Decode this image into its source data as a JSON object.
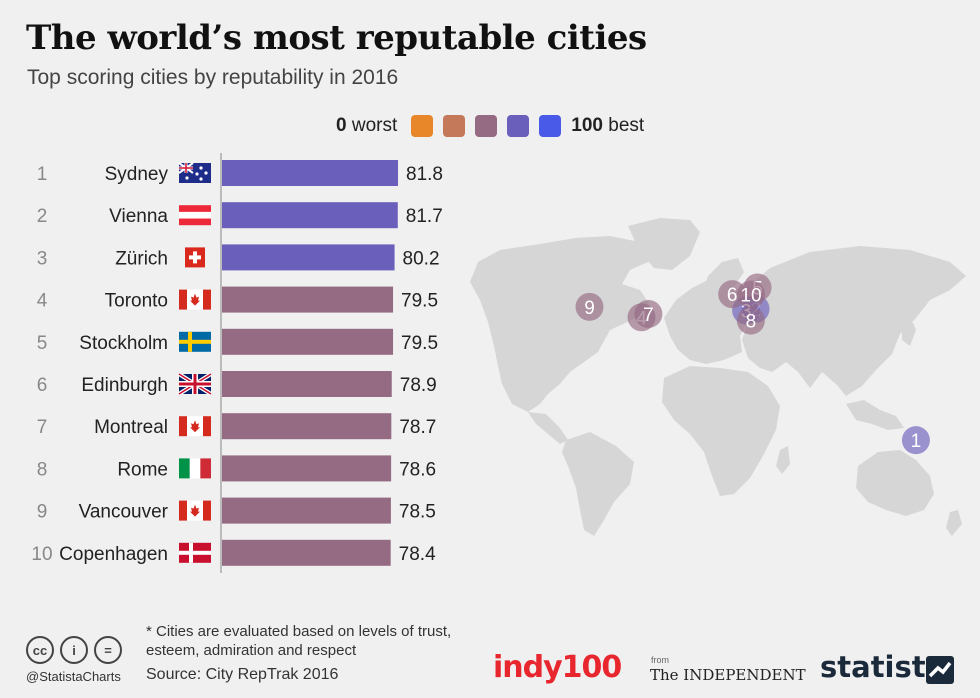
{
  "title": "The world’s most reputable cities",
  "subtitle": "Top scoring cities by reputability in 2016",
  "legend": {
    "low_bold": "0",
    "low_text": "worst",
    "high_bold": "100",
    "high_text": "best",
    "colors": [
      "#e8872a",
      "#c47a5a",
      "#956a83",
      "#6b5fbc",
      "#4a5ae8"
    ]
  },
  "chart_data": {
    "type": "bar",
    "orientation": "horizontal",
    "title": "The world’s most reputable cities",
    "subtitle": "Top scoring cities by reputability in 2016",
    "xlim": [
      0,
      100
    ],
    "categories": [
      "Sydney",
      "Vienna",
      "Zürich",
      "Toronto",
      "Stockholm",
      "Edinburgh",
      "Montreal",
      "Rome",
      "Vancouver",
      "Copenhagen"
    ],
    "ranks": [
      "1",
      "2",
      "3",
      "4",
      "5",
      "6",
      "7",
      "8",
      "9",
      "10"
    ],
    "values": [
      81.8,
      81.7,
      80.2,
      79.5,
      79.5,
      78.9,
      78.7,
      78.6,
      78.5,
      78.4
    ],
    "value_labels": [
      "81.8",
      "81.7",
      "80.2",
      "79.5",
      "79.5",
      "78.9",
      "78.7",
      "78.6",
      "78.5",
      "78.4"
    ],
    "flags": [
      "australia-flag-icon",
      "austria-flag-icon",
      "switzerland-flag-icon",
      "canada-flag-icon",
      "sweden-flag-icon",
      "uk-flag-icon",
      "canada-flag-icon",
      "italy-flag-icon",
      "canada-flag-icon",
      "denmark-flag-icon"
    ],
    "bar_colors": [
      "#6b5fbc",
      "#6b5fbc",
      "#6b5fbc",
      "#956a83",
      "#956a83",
      "#956a83",
      "#956a83",
      "#956a83",
      "#956a83",
      "#956a83"
    ],
    "legend_placement": "top-center"
  },
  "map": {
    "land_color": "#d6d6d6",
    "markers": [
      {
        "label": "1",
        "lon": 151.2,
        "lat": -33.9,
        "color": "#6b5fbc"
      },
      {
        "label": "2",
        "lon": 16.4,
        "lat": 48.2,
        "color": "#6b5fbc"
      },
      {
        "label": "3",
        "lon": 8.5,
        "lat": 47.4,
        "color": "#6b5fbc"
      },
      {
        "label": "4",
        "lon": -79.4,
        "lat": 43.7,
        "color": "#956a83"
      },
      {
        "label": "5",
        "lon": 18.1,
        "lat": 59.3,
        "color": "#956a83"
      },
      {
        "label": "6",
        "lon": -3.2,
        "lat": 55.9,
        "color": "#956a83"
      },
      {
        "label": "7",
        "lon": -73.6,
        "lat": 45.5,
        "color": "#956a83"
      },
      {
        "label": "8",
        "lon": 12.5,
        "lat": 41.9,
        "color": "#956a83"
      },
      {
        "label": "9",
        "lon": -123.1,
        "lat": 49.3,
        "color": "#956a83"
      },
      {
        "label": "10",
        "lon": 12.6,
        "lat": 55.7,
        "color": "#956a83"
      }
    ]
  },
  "footer": {
    "note": "* Cities are evaluated based on levels of trust, esteem, admiration and respect",
    "source": "Source: City RepTrak 2016",
    "handle": "@StatistaCharts",
    "cc": "cc",
    "person": "i",
    "equals": "=",
    "indy": "indy100",
    "from": "from",
    "independent": "The INDEPENDENT",
    "statista": "statista"
  }
}
